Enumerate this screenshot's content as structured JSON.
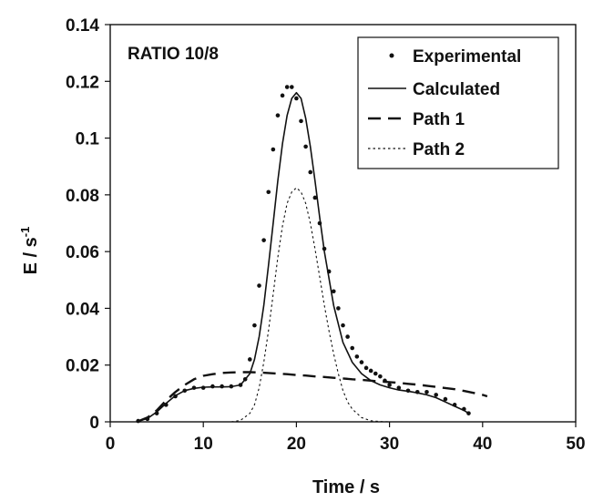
{
  "chart_data": {
    "type": "line",
    "annotation": "RATIO 10/8",
    "xlabel": "Time / s",
    "ylabel_main": "E / s",
    "ylabel_sup": "-1",
    "xlim": [
      0,
      50
    ],
    "ylim": [
      0,
      0.14
    ],
    "x_ticks": [
      0,
      10,
      20,
      30,
      40,
      50
    ],
    "x_tick_labels": [
      "0",
      "10",
      "20",
      "30",
      "40",
      "50"
    ],
    "y_ticks": [
      0,
      0.02,
      0.04,
      0.06,
      0.08,
      0.1,
      0.12,
      0.14
    ],
    "y_tick_labels": [
      "0",
      "0.02",
      "0.04",
      "0.06",
      "0.08",
      "0.1",
      "0.12",
      "0.14"
    ],
    "grid": false,
    "legend_position": "top-right",
    "series": [
      {
        "name": "Experimental",
        "style": "points",
        "x": [
          3,
          4,
          5,
          6,
          7,
          8,
          9,
          10,
          11,
          12,
          13,
          14,
          14.5,
          15,
          15.5,
          16,
          16.5,
          17,
          17.5,
          18,
          18.5,
          19,
          19.5,
          20,
          20.5,
          21,
          21.5,
          22,
          22.5,
          23,
          23.5,
          24,
          24.5,
          25,
          25.5,
          26,
          26.5,
          27,
          27.5,
          28,
          28.5,
          29,
          29.5,
          30,
          31,
          32,
          33,
          34,
          35,
          36,
          37,
          38,
          38.5
        ],
        "y": [
          0.0003,
          0.001,
          0.003,
          0.006,
          0.009,
          0.011,
          0.012,
          0.012,
          0.0125,
          0.0125,
          0.0125,
          0.013,
          0.015,
          0.022,
          0.034,
          0.048,
          0.064,
          0.081,
          0.096,
          0.108,
          0.115,
          0.118,
          0.118,
          0.114,
          0.106,
          0.097,
          0.088,
          0.079,
          0.07,
          0.061,
          0.053,
          0.046,
          0.04,
          0.034,
          0.03,
          0.026,
          0.023,
          0.021,
          0.019,
          0.018,
          0.017,
          0.016,
          0.0145,
          0.013,
          0.012,
          0.011,
          0.0105,
          0.0105,
          0.0095,
          0.008,
          0.006,
          0.0045,
          0.003
        ]
      },
      {
        "name": "Calculated",
        "style": "solid",
        "x": [
          3,
          4,
          5,
          6,
          7,
          8,
          9,
          10,
          11,
          12,
          13,
          14,
          15,
          15.5,
          16,
          16.5,
          17,
          17.5,
          18,
          18.5,
          19,
          19.5,
          20,
          20.5,
          21,
          21.5,
          22,
          22.5,
          23,
          24,
          25,
          26,
          27,
          28,
          29,
          30,
          31,
          32,
          33,
          34,
          35,
          36,
          37,
          38,
          38.5
        ],
        "y": [
          0.0002,
          0.0012,
          0.0035,
          0.0065,
          0.0092,
          0.011,
          0.0118,
          0.0122,
          0.0123,
          0.0123,
          0.0124,
          0.013,
          0.017,
          0.022,
          0.03,
          0.041,
          0.055,
          0.07,
          0.085,
          0.098,
          0.108,
          0.114,
          0.116,
          0.114,
          0.107,
          0.097,
          0.085,
          0.072,
          0.06,
          0.041,
          0.028,
          0.021,
          0.017,
          0.0145,
          0.013,
          0.012,
          0.0112,
          0.0108,
          0.0102,
          0.0095,
          0.0085,
          0.007,
          0.0055,
          0.004,
          0.003
        ]
      },
      {
        "name": "Path 1",
        "style": "dashed",
        "x": [
          3,
          4,
          5,
          6,
          7,
          8,
          9,
          10,
          11,
          12,
          13,
          14,
          15,
          16,
          17,
          18,
          19,
          20,
          21,
          22,
          23,
          24,
          25,
          26,
          27,
          28,
          29,
          30,
          31,
          32,
          33,
          34,
          35,
          36,
          37,
          38,
          39,
          40,
          40.5
        ],
        "y": [
          0.0002,
          0.0015,
          0.004,
          0.0075,
          0.0105,
          0.013,
          0.015,
          0.0162,
          0.0168,
          0.0172,
          0.0174,
          0.0175,
          0.0175,
          0.0174,
          0.0172,
          0.017,
          0.0168,
          0.0165,
          0.0163,
          0.016,
          0.0158,
          0.0155,
          0.0153,
          0.015,
          0.0148,
          0.0145,
          0.0142,
          0.014,
          0.0137,
          0.0134,
          0.0131,
          0.0127,
          0.0123,
          0.0119,
          0.0115,
          0.0109,
          0.0102,
          0.0095,
          0.009
        ]
      },
      {
        "name": "Path 2",
        "style": "dotted",
        "x": [
          13,
          14,
          15,
          15.5,
          16,
          16.5,
          17,
          17.5,
          18,
          18.5,
          19,
          19.5,
          20,
          20.5,
          21,
          21.5,
          22,
          22.5,
          23,
          23.5,
          24,
          24.5,
          25,
          25.5,
          26,
          27,
          28,
          29,
          30,
          31
        ],
        "y": [
          0,
          0.0005,
          0.003,
          0.006,
          0.012,
          0.021,
          0.032,
          0.045,
          0.058,
          0.069,
          0.077,
          0.081,
          0.0825,
          0.081,
          0.077,
          0.07,
          0.061,
          0.051,
          0.041,
          0.032,
          0.024,
          0.017,
          0.011,
          0.007,
          0.0045,
          0.0015,
          0.0004,
          0.0001,
          0,
          0
        ]
      }
    ]
  }
}
